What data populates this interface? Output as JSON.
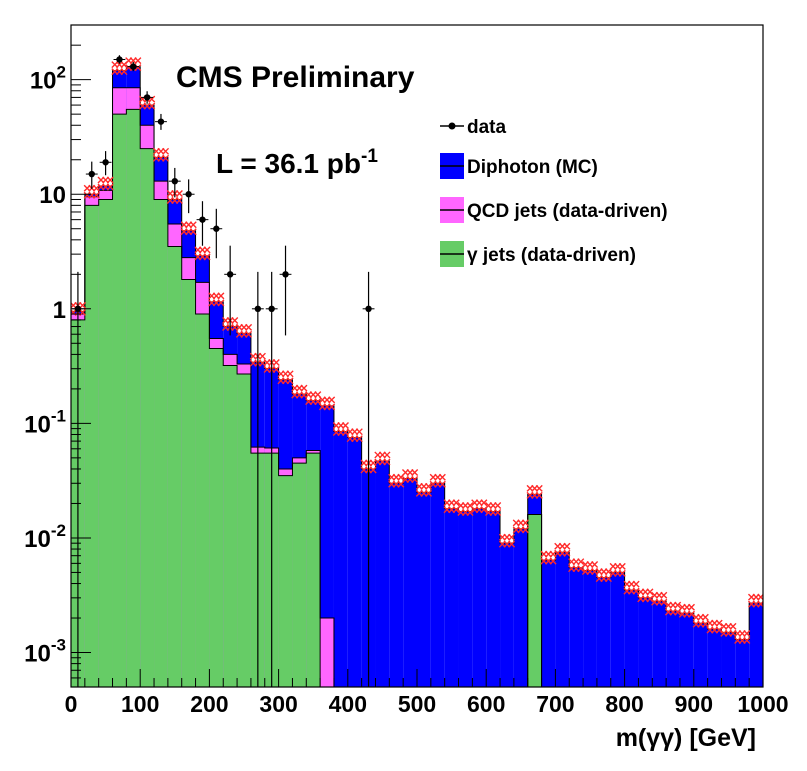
{
  "chart_data": {
    "type": "histogram",
    "title": "CMS Preliminary",
    "luminosity": {
      "base": "L = 36.1 pb",
      "sup": "-1"
    },
    "xlabel": "m(γγ) [GeV]",
    "ylabel": "",
    "xlim": [
      0,
      1000
    ],
    "ylim": [
      0.0005,
      300
    ],
    "yscale": "log",
    "grid": false,
    "legend_position": "top-right",
    "x_ticks": [
      0,
      100,
      200,
      300,
      400,
      500,
      600,
      700,
      800,
      900,
      1000
    ],
    "y_ticks": [
      {
        "value": 0.001,
        "base": "10",
        "sup": "-3"
      },
      {
        "value": 0.01,
        "base": "10",
        "sup": "-2"
      },
      {
        "value": 0.1,
        "base": "10",
        "sup": "-1"
      },
      {
        "value": 1,
        "base": "1",
        "sup": ""
      },
      {
        "value": 10,
        "base": "10",
        "sup": ""
      },
      {
        "value": 100,
        "base": "10",
        "sup": "2"
      }
    ],
    "bin_edges": [
      0,
      20,
      40,
      60,
      80,
      100,
      120,
      140,
      160,
      180,
      200,
      220,
      240,
      260,
      280,
      300,
      320,
      340,
      360,
      380,
      400,
      420,
      440,
      460,
      480,
      500,
      520,
      540,
      560,
      580,
      600,
      620,
      640,
      660,
      680,
      700,
      720,
      740,
      760,
      780,
      800,
      820,
      840,
      860,
      880,
      900,
      920,
      940,
      960,
      980,
      1000
    ],
    "series": [
      {
        "name": "γ jets (data-driven)",
        "color": "#66cc66",
        "values": [
          0.8,
          8,
          9,
          50,
          55,
          25,
          9,
          3.5,
          1.8,
          0.9,
          0.45,
          0.32,
          0.27,
          0.055,
          0.055,
          0.035,
          0.045,
          0.055,
          0,
          0,
          0,
          0,
          0,
          0,
          0,
          0,
          0,
          0,
          0,
          0,
          0,
          0,
          0,
          0.016,
          0,
          0,
          0,
          0,
          0,
          0,
          0,
          0,
          0,
          0,
          0,
          0,
          0,
          0,
          0,
          0
        ]
      },
      {
        "name": "QCD jets (data-driven)",
        "color": "#ff66ff",
        "values": [
          0.1,
          1.5,
          1.8,
          35,
          30,
          15,
          4,
          2,
          1,
          0.8,
          0.1,
          0.08,
          0.06,
          0.007,
          0.006,
          0.005,
          0.005,
          0.003,
          0.002,
          0,
          0,
          0,
          0,
          0,
          0,
          0,
          0,
          0,
          0,
          0,
          0,
          0,
          0,
          0,
          0,
          0,
          0,
          0,
          0,
          0,
          0,
          0,
          0,
          0,
          0,
          0,
          0,
          0,
          0,
          0
        ]
      },
      {
        "name": "Diphoton (MC)",
        "color": "#0000ff",
        "values": [
          0.05,
          0.5,
          1,
          35,
          45,
          20,
          8,
          3.5,
          2,
          1.2,
          0.6,
          0.3,
          0.28,
          0.28,
          0.24,
          0.2,
          0.13,
          0.1,
          0.14,
          0.085,
          0.075,
          0.04,
          0.047,
          0.03,
          0.033,
          0.025,
          0.03,
          0.018,
          0.017,
          0.018,
          0.017,
          0.009,
          0.012,
          0.008,
          0.0064,
          0.0075,
          0.0055,
          0.0052,
          0.0045,
          0.005,
          0.0035,
          0.003,
          0.0028,
          0.0023,
          0.0022,
          0.0018,
          0.0016,
          0.0015,
          0.0013,
          0.0027
        ]
      },
      {
        "name": "data",
        "color": "#000000",
        "values": [
          1,
          15,
          19,
          150,
          130,
          70,
          43,
          13,
          10,
          6,
          5,
          2,
          0,
          1,
          1,
          2,
          0,
          0,
          0,
          0,
          0,
          1,
          0,
          0,
          0,
          0,
          0,
          0,
          0,
          0,
          0,
          0,
          0,
          0,
          0,
          0,
          0,
          0,
          0,
          0,
          0,
          0,
          0,
          0,
          0,
          0,
          0,
          0,
          0,
          0
        ]
      }
    ]
  }
}
